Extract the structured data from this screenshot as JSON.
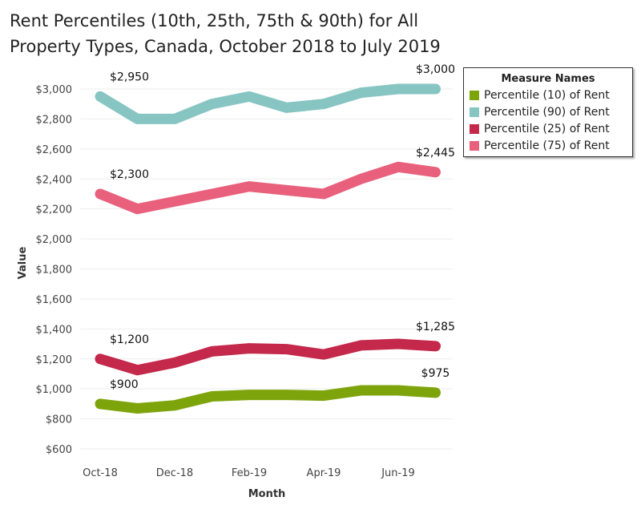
{
  "chart_data": {
    "type": "line",
    "title": "Rent Percentiles (10th, 25th, 75th & 90th) for All Property Types, Canada, October 2018 to July 2019",
    "xlabel": "Month",
    "ylabel": "Value",
    "ylim": [
      550,
      3050
    ],
    "yticks": [
      600,
      800,
      1000,
      1200,
      1400,
      1600,
      1800,
      2000,
      2200,
      2400,
      2600,
      2800,
      3000
    ],
    "ytick_labels": [
      "$600",
      "$800",
      "$1,000",
      "$1,200",
      "$1,400",
      "$1,600",
      "$1,800",
      "$2,000",
      "$2,200",
      "$2,400",
      "$2,600",
      "$2,800",
      "$3,000"
    ],
    "x": [
      "Oct-18",
      "Nov-18",
      "Dec-18",
      "Jan-19",
      "Feb-19",
      "Mar-19",
      "Apr-19",
      "May-19",
      "Jun-19",
      "Jul-19"
    ],
    "xtick_labels": [
      "Oct-18",
      "Dec-18",
      "Feb-19",
      "Apr-19",
      "Jun-19"
    ],
    "xtick_index": [
      0,
      2,
      4,
      6,
      8
    ],
    "grid": true,
    "legend": {
      "title": "Measure Names",
      "placement": "top-right"
    },
    "series": [
      {
        "name": "Percentile (10) of Rent",
        "color": "#7ea40c",
        "values": [
          900,
          870,
          890,
          950,
          960,
          960,
          955,
          990,
          990,
          975
        ],
        "first_label": "$900",
        "last_label": "$975"
      },
      {
        "name": "Percentile (90) of Rent",
        "color": "#86c5c2",
        "values": [
          2950,
          2800,
          2800,
          2900,
          2950,
          2875,
          2900,
          2975,
          3000,
          3000
        ],
        "first_label": "$2,950",
        "last_label": "$3,000"
      },
      {
        "name": "Percentile (25) of Rent",
        "color": "#c4284a",
        "values": [
          1200,
          1125,
          1175,
          1250,
          1270,
          1265,
          1230,
          1290,
          1300,
          1285
        ],
        "first_label": "$1,200",
        "last_label": "$1,285"
      },
      {
        "name": "Percentile (75) of Rent",
        "color": "#e8607c",
        "values": [
          2300,
          2200,
          2250,
          2300,
          2350,
          2325,
          2300,
          2400,
          2480,
          2445
        ],
        "first_label": "$2,300",
        "last_label": "$2,445"
      }
    ]
  }
}
